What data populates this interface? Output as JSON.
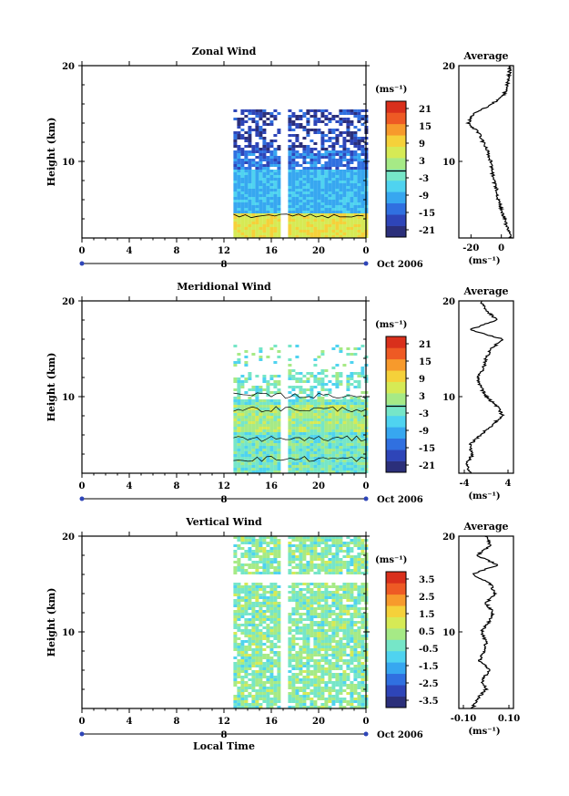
{
  "figure": {
    "x_axis_label": "Local Time",
    "date_label": "Oct 2006",
    "day_label": "8",
    "x_ticks": [
      "0",
      "4",
      "8",
      "12",
      "16",
      "20",
      "0"
    ],
    "y_label": "Height (km)",
    "y_ticks": [
      "20",
      "10"
    ],
    "average_title": "Average",
    "avg_unit": "(ms⁻¹)",
    "cbar_unit": "(ms⁻¹)"
  },
  "chart_data": [
    {
      "type": "heatmap",
      "title": "Zonal Wind",
      "xlabel": "",
      "ylabel": "Height (km)",
      "xlim": [
        0,
        24
      ],
      "ylim": [
        2,
        20
      ],
      "data_time_range": [
        12.8,
        24
      ],
      "data_height_range": [
        2,
        15.2
      ],
      "gap_hours": [
        16.6,
        17.2
      ],
      "colorbar": {
        "ticks": [
          "21",
          "15",
          "9",
          "3",
          "-3",
          "-9",
          "-15",
          "-21"
        ],
        "range": [
          -24,
          24
        ],
        "zero_line": true
      },
      "profile_lines": [
        {
          "height": 4.2,
          "label": "contour"
        }
      ],
      "average": {
        "x_ticks": [
          "-20",
          "0"
        ],
        "xlim": [
          -28,
          8
        ],
        "heights": [
          2,
          3,
          4,
          5,
          6,
          7,
          8,
          9,
          10,
          11,
          12,
          13,
          14,
          15,
          16,
          17,
          18,
          19,
          20
        ],
        "values": [
          6,
          4,
          2,
          0,
          -2,
          -3,
          -5,
          -6,
          -7,
          -9,
          -12,
          -15,
          -22,
          -18,
          -6,
          2,
          4,
          5,
          6
        ]
      }
    },
    {
      "type": "heatmap",
      "title": "Meridional Wind",
      "xlabel": "",
      "ylabel": "Height (km)",
      "xlim": [
        0,
        24
      ],
      "ylim": [
        2,
        20
      ],
      "data_time_range": [
        12.8,
        24
      ],
      "data_height_range": [
        2,
        15.2
      ],
      "gap_hours": [
        16.6,
        17.2
      ],
      "colorbar": {
        "ticks": [
          "21",
          "15",
          "9",
          "3",
          "-3",
          "-9",
          "-15",
          "-21"
        ],
        "range": [
          -24,
          24
        ],
        "zero_line": true
      },
      "average": {
        "x_ticks": [
          "-4",
          "4"
        ],
        "xlim": [
          -5,
          5
        ],
        "heights": [
          2,
          3,
          4,
          5,
          6,
          7,
          8,
          9,
          10,
          11,
          12,
          13,
          14,
          15,
          16,
          17,
          18,
          19,
          20
        ],
        "values": [
          -3,
          -3.5,
          -2.5,
          -3,
          -1,
          1,
          3,
          2,
          0,
          -1,
          -1.5,
          -0.5,
          0,
          1,
          3,
          -3,
          2,
          0,
          -1
        ]
      }
    },
    {
      "type": "heatmap",
      "title": "Vertical Wind",
      "xlabel": "Local Time",
      "ylabel": "Height (km)",
      "xlim": [
        0,
        24
      ],
      "ylim": [
        2,
        20
      ],
      "data_time_range": [
        12.8,
        24
      ],
      "data_height_range": [
        2,
        20
      ],
      "gap_hours": [
        16.6,
        17.2
      ],
      "colorbar": {
        "ticks": [
          "3.5",
          "2.5",
          "1.5",
          "0.5",
          "-0.5",
          "-1.5",
          "-2.5",
          "-3.5"
        ],
        "range": [
          -4,
          4
        ],
        "zero_line": false
      },
      "average": {
        "x_ticks": [
          "-0.10",
          "0.10"
        ],
        "xlim": [
          -0.12,
          0.12
        ],
        "heights": [
          2,
          3,
          4,
          5,
          6,
          7,
          8,
          9,
          10,
          11,
          12,
          13,
          14,
          15,
          16,
          17,
          18,
          19,
          20
        ],
        "values": [
          -0.06,
          -0.04,
          0.0,
          -0.02,
          0.02,
          -0.03,
          -0.01,
          0.0,
          -0.02,
          0.01,
          0.03,
          0.0,
          0.04,
          0.02,
          -0.06,
          0.05,
          -0.04,
          0.02,
          0.0
        ]
      }
    }
  ]
}
